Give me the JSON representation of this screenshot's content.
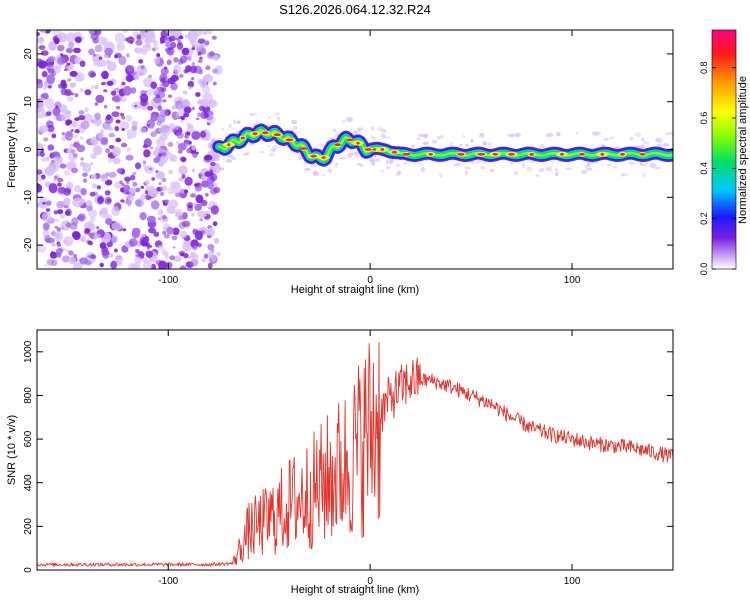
{
  "title": "S126.2026.064.12.32.R24",
  "colors": {
    "snr_line": "#e8322a",
    "axis": "#000000",
    "scatter_main": "#7a1fe0",
    "scatter_light": "#d8bdf8"
  },
  "chart_data": [
    {
      "type": "heatmap",
      "name": "spectrogram",
      "xlabel": "Height of straight line (km)",
      "ylabel": "Frequency (Hz)",
      "xlim": [
        -165,
        150
      ],
      "ylim": [
        -25,
        25
      ],
      "xticks": [
        -100,
        0,
        100
      ],
      "yticks": [
        -20,
        -10,
        0,
        10,
        20
      ],
      "noise_region_end_km": -75,
      "ridge": {
        "x": [
          -75,
          -70,
          -65,
          -60,
          -55,
          -50,
          -45,
          -40,
          -35,
          -30,
          -25,
          -22,
          -18,
          -12,
          -8,
          -5,
          -2,
          2,
          8,
          15,
          25,
          40,
          60,
          80,
          100,
          120,
          150
        ],
        "y": [
          0,
          1,
          2,
          3,
          3.5,
          3.5,
          3,
          2,
          1,
          -1,
          -2,
          -1.5,
          0.5,
          2,
          2,
          1,
          0,
          0,
          0,
          -1,
          -1,
          -1,
          -1,
          -1,
          -1,
          -1,
          -1
        ]
      },
      "colorbar": {
        "label": "Normalized spectral amplitude",
        "range": [
          0.0,
          0.95
        ],
        "ticks": [
          "0.0",
          "0.2",
          "0.4",
          "0.6",
          "0.8"
        ],
        "tick_values": [
          0.0,
          0.2,
          0.4,
          0.6,
          0.8
        ]
      }
    },
    {
      "type": "line",
      "name": "snr",
      "xlabel": "Height of straight line (km)",
      "ylabel": "SNR (10 * v/v)",
      "xlim": [
        -165,
        150
      ],
      "ylim": [
        0,
        1100
      ],
      "xticks": [
        -100,
        0,
        100
      ],
      "yticks": [
        0,
        200,
        400,
        600,
        800,
        1000
      ],
      "trend": {
        "x": [
          -165,
          -140,
          -110,
          -80,
          -68,
          -60,
          -50,
          -40,
          -30,
          -20,
          -10,
          0,
          10,
          20,
          30,
          40,
          50,
          60,
          70,
          80,
          90,
          100,
          110,
          120,
          130,
          140,
          150
        ],
        "y": [
          25,
          25,
          25,
          25,
          30,
          180,
          230,
          300,
          350,
          420,
          500,
          640,
          790,
          870,
          870,
          840,
          800,
          760,
          700,
          650,
          620,
          600,
          580,
          570,
          560,
          540,
          520
        ]
      }
    }
  ]
}
